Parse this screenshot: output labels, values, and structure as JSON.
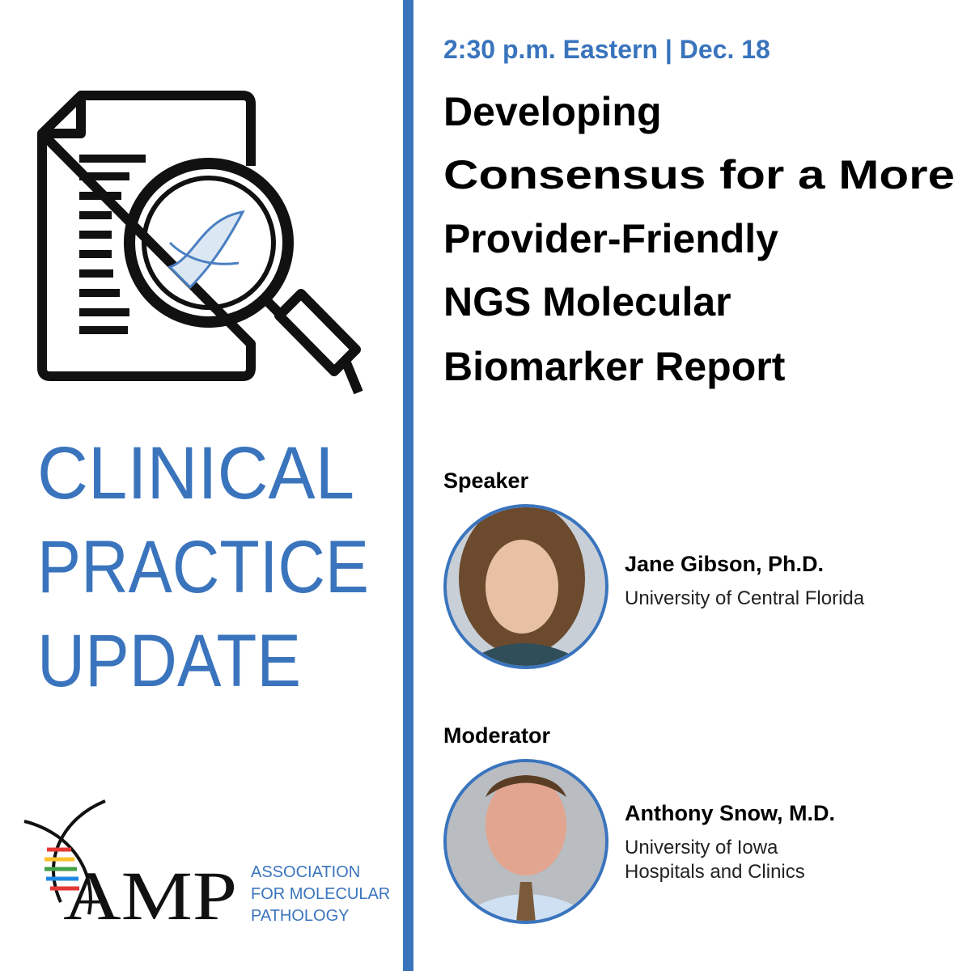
{
  "left": {
    "heading": [
      "CLINICAL",
      "PRACTICE",
      "UPDATE"
    ],
    "logo": {
      "acronym": "AMP",
      "name": [
        "ASSOCIATION",
        "FOR MOLECULAR",
        "PATHOLOGY"
      ]
    }
  },
  "right": {
    "when": "2:30 p.m. Eastern | Dec. 18",
    "title": [
      "Developing",
      "Consensus for a More",
      "Provider-Friendly",
      "NGS Molecular",
      "Biomarker Report"
    ],
    "people": [
      {
        "role": "Speaker",
        "name": "Jane Gibson, Ph.D.",
        "affiliation": [
          "University of Central Florida"
        ]
      },
      {
        "role": "Moderator",
        "name": "Anthony Snow, M.D.",
        "affiliation": [
          "University of Iowa",
          "Hospitals and Clinics"
        ]
      }
    ]
  }
}
